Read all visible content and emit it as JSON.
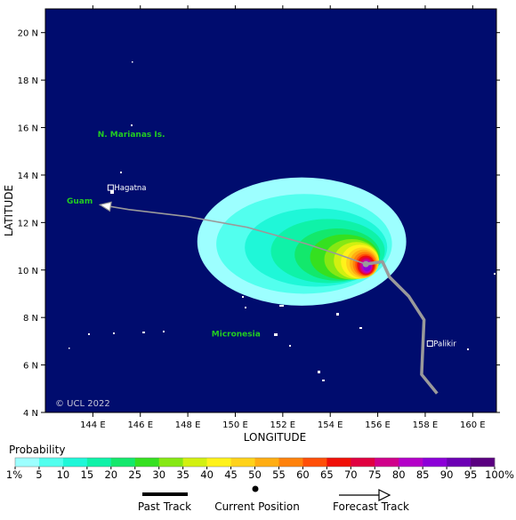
{
  "map": {
    "lon_range": [
      142,
      161
    ],
    "lat_range": [
      4,
      21
    ],
    "x_axis_label": "LONGITUDE",
    "y_axis_label": "LATITUDE",
    "x_ticks": [
      {
        "value": 144,
        "label": "144 E"
      },
      {
        "value": 146,
        "label": "146 E"
      },
      {
        "value": 148,
        "label": "148 E"
      },
      {
        "value": 150,
        "label": "150 E"
      },
      {
        "value": 152,
        "label": "152 E"
      },
      {
        "value": 154,
        "label": "154 E"
      },
      {
        "value": 156,
        "label": "156 E"
      },
      {
        "value": 158,
        "label": "158 E"
      },
      {
        "value": 160,
        "label": "160 E"
      }
    ],
    "y_ticks": [
      {
        "value": 4,
        "label": "4 N"
      },
      {
        "value": 6,
        "label": "6 N"
      },
      {
        "value": 8,
        "label": "8 N"
      },
      {
        "value": 10,
        "label": "10 N"
      },
      {
        "value": 12,
        "label": "12 N"
      },
      {
        "value": 14,
        "label": "14 N"
      },
      {
        "value": 16,
        "label": "16 N"
      },
      {
        "value": 18,
        "label": "18 N"
      },
      {
        "value": 20,
        "label": "20 N"
      }
    ],
    "ocean_color": "#000c6e",
    "region_labels": [
      {
        "text": "N. Marianas Is.",
        "lon": 144.2,
        "lat": 15.6
      },
      {
        "text": "Guam",
        "lon": 142.9,
        "lat": 12.8
      },
      {
        "text": "Micronesia",
        "lon": 149.0,
        "lat": 7.2
      }
    ],
    "cities": [
      {
        "name": "Hagatna",
        "lon": 144.75,
        "lat": 13.47
      },
      {
        "name": "Palikir",
        "lon": 158.2,
        "lat": 6.9
      }
    ],
    "copyright": "© UCL 2022"
  },
  "storm": {
    "current_position": {
      "lon": 155.5,
      "lat": 10.25
    },
    "past_track": [
      {
        "lon": 158.5,
        "lat": 4.8
      },
      {
        "lon": 157.85,
        "lat": 5.6
      },
      {
        "lon": 157.95,
        "lat": 7.9
      },
      {
        "lon": 157.3,
        "lat": 8.9
      },
      {
        "lon": 156.5,
        "lat": 9.7
      },
      {
        "lon": 156.2,
        "lat": 10.35
      },
      {
        "lon": 155.5,
        "lat": 10.25
      }
    ],
    "forecast_track": [
      {
        "lon": 155.5,
        "lat": 10.25
      },
      {
        "lon": 154.5,
        "lat": 10.6
      },
      {
        "lon": 153.0,
        "lat": 11.1
      },
      {
        "lon": 150.5,
        "lat": 11.8
      },
      {
        "lon": 148.0,
        "lat": 12.25
      },
      {
        "lon": 145.5,
        "lat": 12.55
      },
      {
        "lon": 144.3,
        "lat": 12.75
      }
    ],
    "probability_swath": [
      {
        "level": 1,
        "center": [
          152.8,
          11.2
        ],
        "radii": [
          4.4,
          2.7
        ]
      },
      {
        "level": 5,
        "center": [
          152.9,
          11.1
        ],
        "radii": [
          3.7,
          2.1
        ]
      },
      {
        "level": 10,
        "center": [
          153.4,
          10.95
        ],
        "radii": [
          3.0,
          1.65
        ]
      },
      {
        "level": 15,
        "center": [
          153.9,
          10.8
        ],
        "radii": [
          2.4,
          1.35
        ]
      },
      {
        "level": 20,
        "center": [
          154.3,
          10.65
        ],
        "radii": [
          1.8,
          1.1
        ]
      },
      {
        "level": 25,
        "center": [
          154.6,
          10.55
        ],
        "radii": [
          1.45,
          0.95
        ]
      },
      {
        "level": 30,
        "center": [
          154.9,
          10.45
        ],
        "radii": [
          1.15,
          0.85
        ]
      },
      {
        "level": 35,
        "center": [
          155.1,
          10.4
        ],
        "radii": [
          0.95,
          0.78
        ]
      },
      {
        "level": 40,
        "center": [
          155.25,
          10.35
        ],
        "radii": [
          0.8,
          0.72
        ]
      },
      {
        "level": 45,
        "center": [
          155.35,
          10.3
        ],
        "radii": [
          0.68,
          0.65
        ]
      },
      {
        "level": 50,
        "center": [
          155.4,
          10.28
        ],
        "radii": [
          0.58,
          0.58
        ]
      },
      {
        "level": 55,
        "center": [
          155.45,
          10.25
        ],
        "radii": [
          0.5,
          0.52
        ]
      },
      {
        "level": 60,
        "center": [
          155.48,
          10.22
        ],
        "radii": [
          0.43,
          0.46
        ]
      },
      {
        "level": 65,
        "center": [
          155.5,
          10.2
        ],
        "radii": [
          0.37,
          0.41
        ]
      },
      {
        "level": 70,
        "center": [
          155.5,
          10.18
        ],
        "radii": [
          0.31,
          0.36
        ]
      },
      {
        "level": 75,
        "center": [
          155.52,
          10.16
        ],
        "radii": [
          0.26,
          0.31
        ]
      },
      {
        "level": 80,
        "center": [
          155.54,
          10.15
        ],
        "radii": [
          0.21,
          0.26
        ]
      },
      {
        "level": 85,
        "center": [
          155.55,
          10.14
        ],
        "radii": [
          0.16,
          0.2
        ]
      }
    ]
  },
  "legend": {
    "title": "Probability",
    "labels": [
      "1%",
      "5",
      "10",
      "15",
      "20",
      "25",
      "30",
      "35",
      "40",
      "45",
      "50",
      "55",
      "60",
      "65",
      "70",
      "75",
      "80",
      "85",
      "90",
      "95",
      "100%"
    ],
    "colors": [
      "#9dffff",
      "#52ffee",
      "#1ff7d8",
      "#0ff2a8",
      "#13e86c",
      "#35e020",
      "#86e813",
      "#d2f010",
      "#fff21a",
      "#ffd21a",
      "#ffad12",
      "#ff820c",
      "#ff4f08",
      "#f01008",
      "#e00040",
      "#d0008a",
      "#b400c8",
      "#8c00d8",
      "#6c00b4",
      "#5a0080"
    ],
    "key": {
      "past_track": "Past Track",
      "current_position": "Current Position",
      "forecast_track": "Forecast Track"
    }
  }
}
